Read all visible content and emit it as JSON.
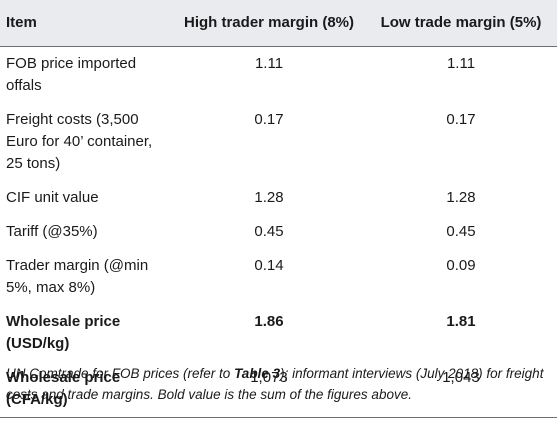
{
  "table": {
    "headers": [
      "Item",
      "High trader margin (8%)",
      "Low trade margin (5%)"
    ],
    "rows": [
      {
        "item": "FOB price imported offals",
        "high": "1.11",
        "low": "1.11",
        "bold": false
      },
      {
        "item": "Freight costs (3,500 Euro for 40’ container, 25 tons)",
        "high": "0.17",
        "low": "0.17",
        "bold": false
      },
      {
        "item": "CIF unit value",
        "high": "1.28",
        "low": "1.28",
        "bold": false
      },
      {
        "item": "Tariff (@35%)",
        "high": "0.45",
        "low": "0.45",
        "bold": false
      },
      {
        "item": "Trader margin (@min 5%, max 8%)",
        "high": "0.14",
        "low": "0.09",
        "bold": false
      },
      {
        "item": "Wholesale price (USD/kg)",
        "high": "1.86",
        "low": "1.81",
        "bold": true
      },
      {
        "item": "Wholesale price (CFA/kg)",
        "high": "1,073",
        "low": "1,043",
        "bold": false,
        "item_bold": true
      }
    ]
  },
  "footnote": {
    "part1": "UN Comtrade for FOB prices (refer to ",
    "ref": "Table 3",
    "part2": "); informant interviews (July 2018) for freight costs and trade margins. Bold value is the sum of the figures above."
  }
}
